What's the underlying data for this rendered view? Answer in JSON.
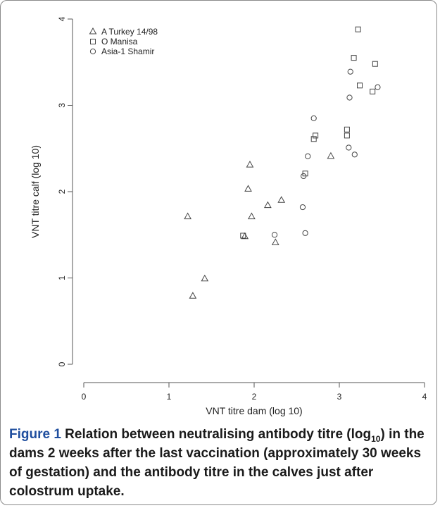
{
  "chart_data": {
    "type": "scatter",
    "xlabel": "VNT titre dam (log 10)",
    "ylabel": "VNT titre calf (log 10)",
    "xlim": [
      0,
      4
    ],
    "ylim": [
      0,
      4
    ],
    "xticks": [
      "0",
      "1",
      "2",
      "3",
      "4"
    ],
    "yticks": [
      "0",
      "1",
      "2",
      "3",
      "4"
    ],
    "grid": false,
    "legend_position": "top-left",
    "series": [
      {
        "name": "A Turkey 14/98",
        "marker": "triangle",
        "points": [
          [
            1.22,
            1.71
          ],
          [
            1.28,
            0.79
          ],
          [
            1.42,
            0.99
          ],
          [
            1.89,
            1.48
          ],
          [
            1.93,
            2.03
          ],
          [
            1.95,
            2.31
          ],
          [
            1.97,
            1.71
          ],
          [
            2.16,
            1.84
          ],
          [
            2.25,
            1.41
          ],
          [
            2.32,
            1.9
          ],
          [
            2.9,
            2.41
          ]
        ]
      },
      {
        "name": "O Manisa",
        "marker": "square",
        "points": [
          [
            1.87,
            1.49
          ],
          [
            2.6,
            2.21
          ],
          [
            2.7,
            2.61
          ],
          [
            2.72,
            2.65
          ],
          [
            3.09,
            2.72
          ],
          [
            3.09,
            2.65
          ],
          [
            3.17,
            3.55
          ],
          [
            3.22,
            3.88
          ],
          [
            3.24,
            3.23
          ],
          [
            3.39,
            3.16
          ],
          [
            3.42,
            3.48
          ]
        ]
      },
      {
        "name": "Asia-1 Shamir",
        "marker": "circle",
        "points": [
          [
            2.24,
            1.5
          ],
          [
            2.57,
            1.82
          ],
          [
            2.58,
            2.18
          ],
          [
            2.6,
            1.52
          ],
          [
            2.63,
            2.41
          ],
          [
            2.7,
            2.85
          ],
          [
            3.11,
            2.51
          ],
          [
            3.12,
            3.09
          ],
          [
            3.13,
            3.39
          ],
          [
            3.18,
            2.43
          ],
          [
            3.45,
            3.21
          ]
        ]
      }
    ]
  },
  "caption": {
    "label": "Figure 1",
    "text_before": " Relation between neutralising antibody titre (log",
    "sub": "10",
    "text_after": ") in the dams 2 weeks after the last vaccination (approximately 30 weeks of gestation) and the antibody titre in the calves just after colostrum uptake."
  }
}
